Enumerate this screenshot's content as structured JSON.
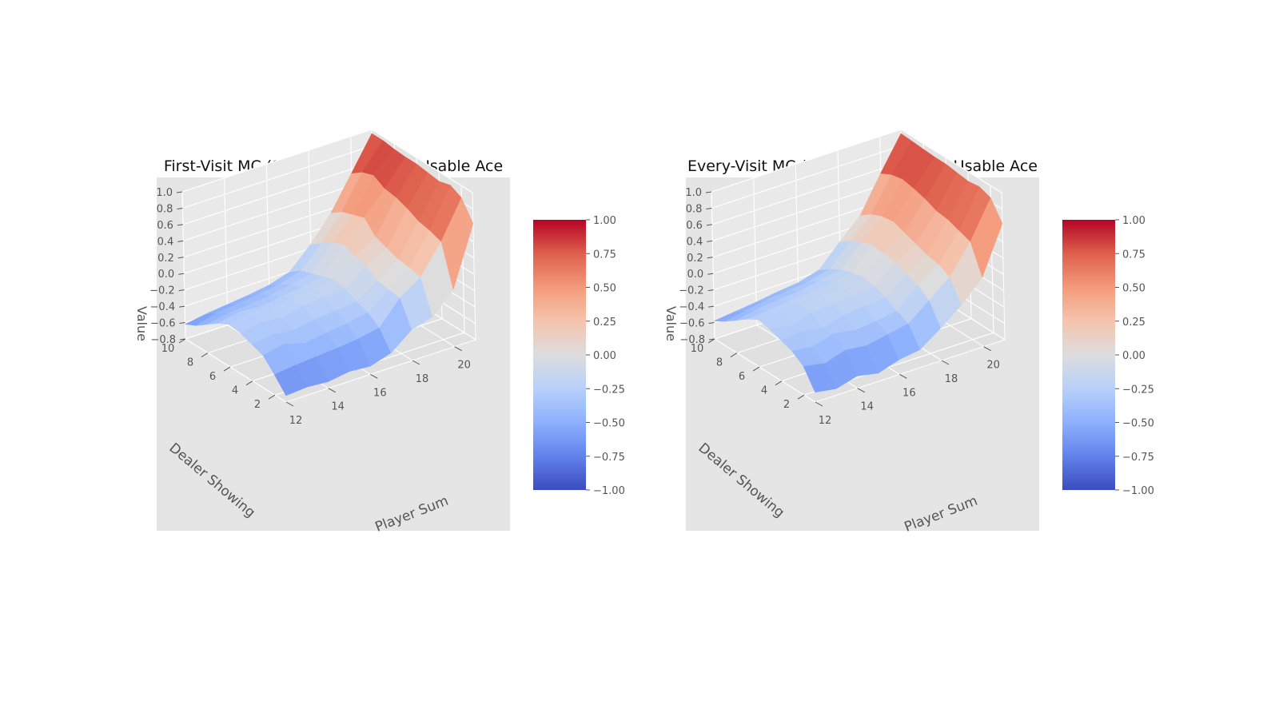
{
  "chart_data": [
    {
      "type": "surface3d",
      "title": "First-Visit MC (10k episodes) - No Usable Ace",
      "xlabel": "Player Sum",
      "ylabel": "Dealer Showing",
      "zlabel": "Value",
      "xlim": [
        12,
        21
      ],
      "ylim": [
        1,
        10
      ],
      "zlim": [
        -0.8,
        1.0
      ],
      "x_ticks": [
        12,
        14,
        16,
        18,
        20
      ],
      "y_ticks": [
        2,
        4,
        6,
        8,
        10
      ],
      "z_ticks": [
        -0.8,
        -0.6,
        -0.4,
        -0.2,
        0.0,
        0.2,
        0.4,
        0.6,
        0.8,
        1.0
      ],
      "x": [
        12,
        13,
        14,
        15,
        16,
        17,
        18,
        19,
        20,
        21
      ],
      "y": [
        1,
        2,
        3,
        4,
        5,
        6,
        7,
        8,
        9,
        10
      ],
      "colormap": "coolwarm",
      "colorbar": {
        "range": [
          -1.0,
          1.0
        ],
        "ticks": [
          "1.00",
          "0.75",
          "0.50",
          "0.25",
          "0.00",
          "−0.25",
          "−0.50",
          "−0.75",
          "−1.00"
        ]
      },
      "grid": true,
      "z": [
        [
          -0.72,
          -0.7,
          -0.72,
          -0.68,
          -0.7,
          -0.62,
          -0.42,
          -0.35,
          -0.1,
          0.62
        ],
        [
          -0.55,
          -0.52,
          -0.5,
          -0.48,
          -0.45,
          -0.4,
          -0.12,
          0.05,
          0.4,
          0.85
        ],
        [
          -0.4,
          -0.35,
          -0.42,
          -0.38,
          -0.35,
          -0.3,
          -0.1,
          0.08,
          0.45,
          0.92
        ],
        [
          -0.35,
          -0.32,
          -0.35,
          -0.3,
          -0.28,
          -0.25,
          -0.08,
          0.1,
          0.48,
          0.88
        ],
        [
          -0.3,
          -0.25,
          -0.28,
          -0.22,
          -0.2,
          -0.18,
          0.02,
          0.15,
          0.55,
          0.9
        ],
        [
          -0.28,
          -0.22,
          -0.25,
          -0.2,
          -0.18,
          -0.15,
          0.05,
          0.2,
          0.6,
          0.92
        ],
        [
          -0.35,
          -0.3,
          -0.32,
          -0.28,
          -0.25,
          -0.2,
          0.1,
          0.35,
          0.62,
          0.92
        ],
        [
          -0.45,
          -0.4,
          -0.38,
          -0.35,
          -0.3,
          -0.25,
          0.05,
          0.3,
          0.7,
          0.93
        ],
        [
          -0.55,
          -0.48,
          -0.45,
          -0.42,
          -0.38,
          -0.3,
          -0.05,
          0.25,
          0.65,
          0.95
        ],
        [
          -0.62,
          -0.58,
          -0.55,
          -0.52,
          -0.48,
          -0.4,
          -0.15,
          0.15,
          0.55,
          0.95
        ]
      ]
    },
    {
      "type": "surface3d",
      "title": "Every-Visit MC (10k episodes) - No Usable Ace",
      "xlabel": "Player Sum",
      "ylabel": "Dealer Showing",
      "zlabel": "Value",
      "xlim": [
        12,
        21
      ],
      "ylim": [
        1,
        10
      ],
      "zlim": [
        -0.8,
        1.0
      ],
      "x_ticks": [
        12,
        14,
        16,
        18,
        20
      ],
      "y_ticks": [
        2,
        4,
        6,
        8,
        10
      ],
      "z_ticks": [
        -0.8,
        -0.6,
        -0.4,
        -0.2,
        0.0,
        0.2,
        0.4,
        0.6,
        0.8,
        1.0
      ],
      "x": [
        12,
        13,
        14,
        15,
        16,
        17,
        18,
        19,
        20,
        21
      ],
      "y": [
        1,
        2,
        3,
        4,
        5,
        6,
        7,
        8,
        9,
        10
      ],
      "colormap": "coolwarm",
      "colorbar": {
        "range": [
          -1.0,
          1.0
        ],
        "ticks": [
          "1.00",
          "0.75",
          "0.50",
          "0.25",
          "0.00",
          "−0.25",
          "−0.50",
          "−0.75",
          "−1.00"
        ]
      },
      "grid": true,
      "z": [
        [
          -0.68,
          -0.72,
          -0.65,
          -0.7,
          -0.62,
          -0.58,
          -0.4,
          -0.2,
          0.05,
          0.62
        ],
        [
          -0.45,
          -0.5,
          -0.42,
          -0.45,
          -0.4,
          -0.35,
          -0.15,
          0.05,
          0.4,
          0.85
        ],
        [
          -0.35,
          -0.38,
          -0.3,
          -0.35,
          -0.32,
          -0.28,
          -0.05,
          0.12,
          0.45,
          0.9
        ],
        [
          -0.3,
          -0.28,
          -0.32,
          -0.25,
          -0.22,
          -0.2,
          0.0,
          0.15,
          0.5,
          0.88
        ],
        [
          -0.25,
          -0.3,
          -0.22,
          -0.2,
          -0.18,
          -0.15,
          0.05,
          0.2,
          0.52,
          0.9
        ],
        [
          -0.22,
          -0.25,
          -0.2,
          -0.18,
          -0.15,
          -0.12,
          0.08,
          0.25,
          0.58,
          0.92
        ],
        [
          -0.3,
          -0.28,
          -0.25,
          -0.22,
          -0.2,
          -0.15,
          0.1,
          0.3,
          0.62,
          0.92
        ],
        [
          -0.4,
          -0.35,
          -0.32,
          -0.3,
          -0.25,
          -0.2,
          0.05,
          0.28,
          0.65,
          0.93
        ],
        [
          -0.5,
          -0.45,
          -0.4,
          -0.38,
          -0.35,
          -0.28,
          -0.02,
          0.22,
          0.62,
          0.94
        ],
        [
          -0.58,
          -0.55,
          -0.52,
          -0.48,
          -0.45,
          -0.38,
          -0.12,
          0.12,
          0.55,
          0.95
        ]
      ]
    }
  ]
}
